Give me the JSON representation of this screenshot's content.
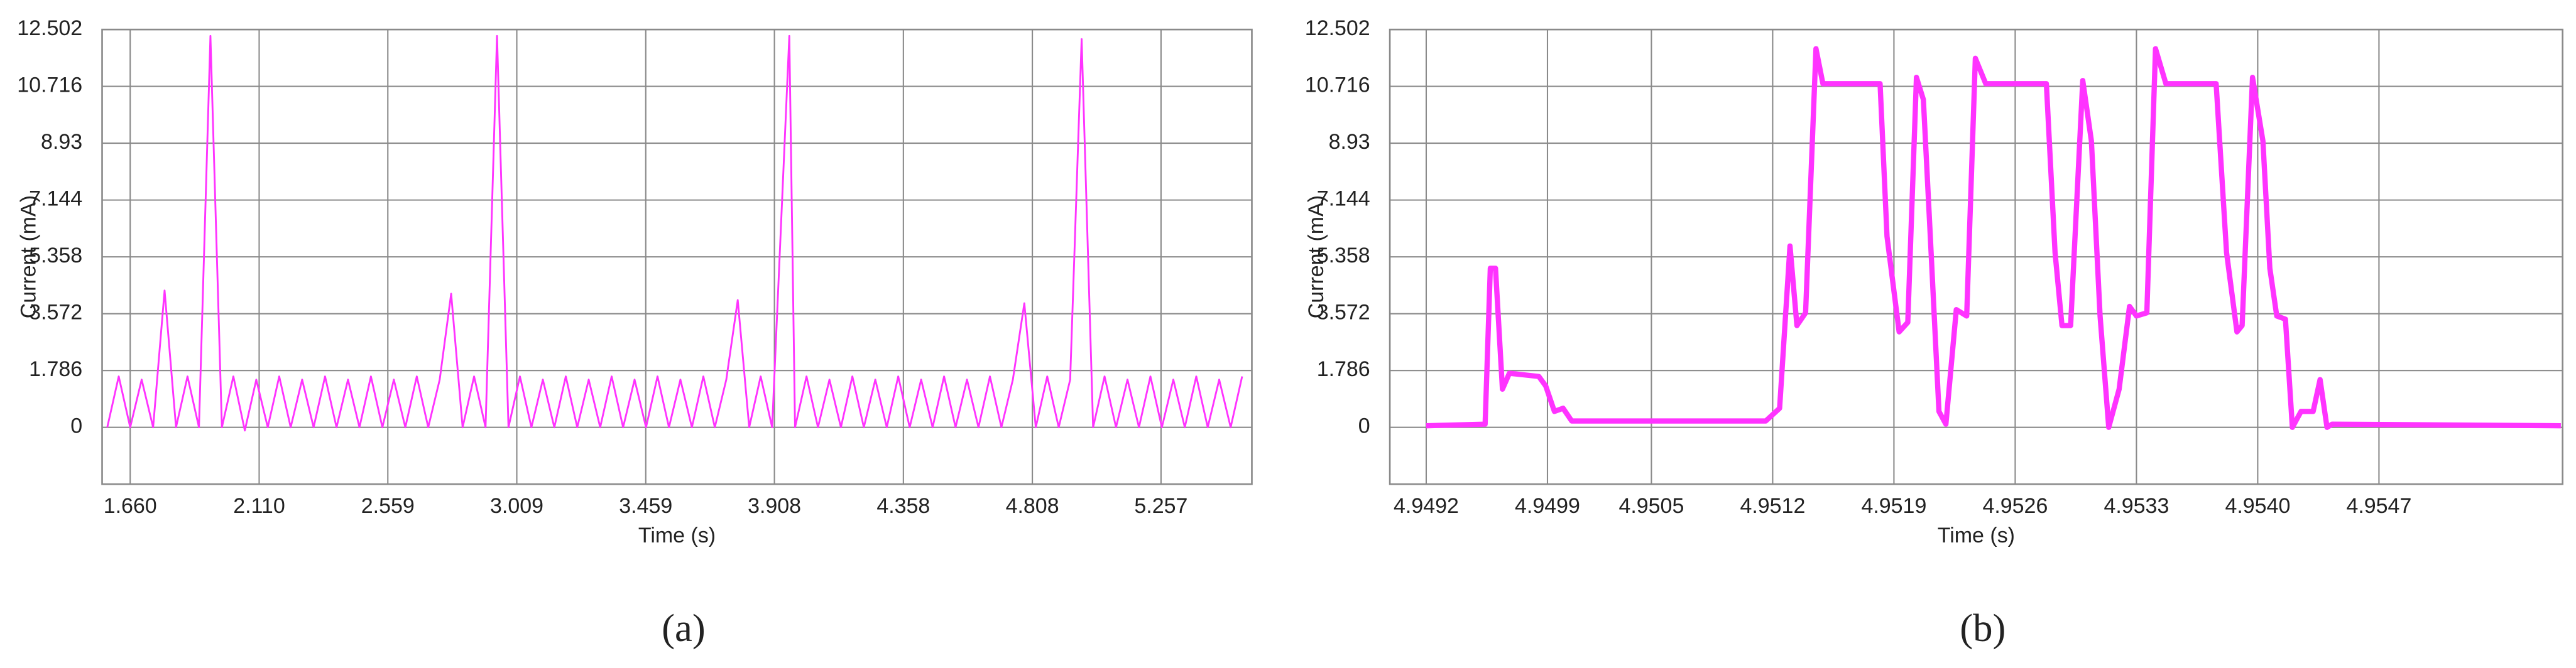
{
  "chart_data": [
    {
      "type": "line",
      "caption": "(a)",
      "xlabel": "Time (s)",
      "ylabel": "Current (mA)",
      "color": "#ff33ff",
      "grid": true,
      "xlim": [
        1.562,
        5.574
      ],
      "ylim": [
        -1.786,
        12.502
      ],
      "xticks": [
        {
          "value": 1.66,
          "label": "1.660"
        },
        {
          "value": 2.11,
          "label": "2.110"
        },
        2.559,
        3.009,
        3.459,
        3.908,
        4.358,
        4.808,
        5.257
      ],
      "yticks": [
        0,
        1.786,
        3.572,
        5.358,
        7.144,
        8.93,
        10.716,
        12.502
      ],
      "x": [
        1.58,
        1.62,
        1.66,
        1.7,
        1.74,
        1.78,
        1.82,
        1.86,
        1.9,
        1.94,
        1.98,
        2.02,
        2.06,
        2.1,
        2.14,
        2.18,
        2.22,
        2.26,
        2.3,
        2.34,
        2.38,
        2.42,
        2.46,
        2.5,
        2.54,
        2.58,
        2.62,
        2.66,
        2.7,
        2.74,
        2.78,
        2.82,
        2.86,
        2.9,
        2.94,
        2.98,
        3.02,
        3.06,
        3.1,
        3.14,
        3.18,
        3.22,
        3.26,
        3.3,
        3.34,
        3.38,
        3.42,
        3.46,
        3.5,
        3.54,
        3.58,
        3.62,
        3.66,
        3.7,
        3.74,
        3.78,
        3.82,
        3.86,
        3.9,
        3.96,
        3.98,
        4.02,
        4.06,
        4.1,
        4.14,
        4.18,
        4.22,
        4.26,
        4.3,
        4.34,
        4.38,
        4.42,
        4.46,
        4.5,
        4.54,
        4.58,
        4.62,
        4.66,
        4.7,
        4.74,
        4.78,
        4.82,
        4.86,
        4.9,
        4.94,
        4.98,
        5.02,
        5.06,
        5.1,
        5.14,
        5.18,
        5.22,
        5.26,
        5.3,
        5.34,
        5.38,
        5.42,
        5.46,
        5.5,
        5.54
      ],
      "values": [
        0,
        1.6,
        0,
        1.5,
        0,
        4.3,
        0,
        1.6,
        0,
        12.3,
        0,
        1.6,
        -0.1,
        1.5,
        0,
        1.6,
        0,
        1.5,
        0,
        1.6,
        0,
        1.5,
        0,
        1.6,
        0,
        1.5,
        0,
        1.6,
        0,
        1.5,
        4.2,
        0,
        1.6,
        0,
        12.3,
        0,
        1.6,
        0,
        1.5,
        0,
        1.6,
        0,
        1.5,
        0,
        1.6,
        0,
        1.5,
        0,
        1.6,
        0,
        1.5,
        0,
        1.6,
        0,
        1.5,
        4.0,
        0,
        1.6,
        0,
        12.3,
        0,
        1.6,
        0,
        1.5,
        0,
        1.6,
        0,
        1.5,
        0,
        1.6,
        0,
        1.5,
        0,
        1.6,
        0,
        1.5,
        0,
        1.6,
        0,
        1.5,
        3.9,
        0,
        1.6,
        0,
        1.5,
        12.2,
        0,
        1.6,
        0,
        1.5,
        0,
        1.6,
        0,
        1.5,
        0,
        1.6,
        0,
        1.5,
        0,
        1.6
      ]
    },
    {
      "type": "line",
      "caption": "(b)",
      "xlabel": "Time (s)",
      "ylabel": "Current (mA)",
      "color": "#ff33ff",
      "grid": true,
      "xlim": [
        4.94899,
        4.95576
      ],
      "ylim": [
        -1.786,
        12.502
      ],
      "xticks": [
        4.9492,
        4.9499,
        4.9505,
        4.9512,
        4.9519,
        4.9526,
        4.9533,
        {
          "value": 4.954,
          "label": "4.9540"
        },
        4.9547
      ],
      "yticks": [
        0,
        1.786,
        3.572,
        5.358,
        7.144,
        8.93,
        10.716,
        12.502
      ],
      "x": [
        4.9492,
        4.94954,
        4.94957,
        4.9496,
        4.94964,
        4.94968,
        4.94985,
        4.94989,
        4.94994,
        4.94999,
        4.95004,
        4.95047,
        4.95116,
        4.95124,
        4.9513,
        4.95134,
        4.95139,
        4.95145,
        4.95149,
        4.95182,
        4.95186,
        4.95193,
        4.95198,
        4.95203,
        4.95207,
        4.95211,
        4.95216,
        4.9522,
        4.95226,
        4.95232,
        4.95237,
        4.95243,
        4.95278,
        4.95283,
        4.95287,
        4.95292,
        4.95299,
        4.95304,
        4.95309,
        4.95314,
        4.9532,
        4.95326,
        4.9533,
        4.95336,
        4.95341,
        4.95347,
        4.95376,
        4.95382,
        4.95388,
        4.95391,
        4.95397,
        4.95403,
        4.95407,
        4.95411,
        4.95416,
        4.9542,
        4.95425,
        4.95432,
        4.95436,
        4.9544,
        4.95443,
        4.95575
      ],
      "values": [
        0.05,
        0.1,
        5.0,
        5.0,
        1.2,
        1.7,
        1.6,
        1.3,
        0.5,
        0.6,
        0.2,
        0.2,
        0.2,
        0.6,
        5.7,
        3.2,
        3.6,
        11.9,
        10.8,
        10.8,
        6,
        3,
        3.3,
        11.0,
        10.3,
        6,
        0.5,
        0.1,
        3.7,
        3.5,
        11.6,
        10.8,
        10.8,
        5.5,
        3.2,
        3.2,
        10.9,
        9,
        3.5,
        0,
        1.2,
        3.8,
        3.5,
        3.6,
        11.9,
        10.8,
        10.8,
        5.5,
        3.0,
        3.2,
        11.0,
        9,
        5.0,
        3.5,
        3.4,
        0,
        0.5,
        0.5,
        1.5,
        0,
        0.1,
        0.05
      ]
    }
  ]
}
